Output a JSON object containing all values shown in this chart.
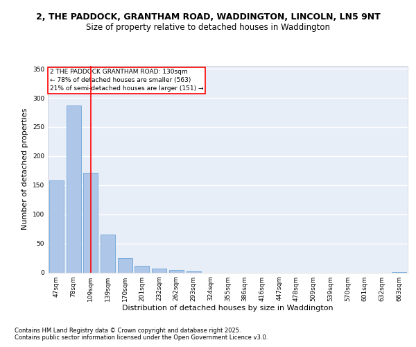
{
  "title1": "2, THE PADDOCK, GRANTHAM ROAD, WADDINGTON, LINCOLN, LN5 9NT",
  "title2": "Size of property relative to detached houses in Waddington",
  "xlabel": "Distribution of detached houses by size in Waddington",
  "ylabel": "Number of detached properties",
  "categories": [
    "47sqm",
    "78sqm",
    "109sqm",
    "139sqm",
    "170sqm",
    "201sqm",
    "232sqm",
    "262sqm",
    "293sqm",
    "324sqm",
    "355sqm",
    "386sqm",
    "416sqm",
    "447sqm",
    "478sqm",
    "509sqm",
    "539sqm",
    "570sqm",
    "601sqm",
    "632sqm",
    "663sqm"
  ],
  "values": [
    158,
    287,
    171,
    65,
    25,
    11,
    7,
    4,
    2,
    0,
    0,
    0,
    0,
    0,
    0,
    0,
    0,
    0,
    0,
    0,
    1
  ],
  "bar_color": "#aec6e8",
  "bar_edge_color": "#5b9bd5",
  "vline_x_index": 2,
  "vline_color": "red",
  "annotation_text": "2 THE PADDOCK GRANTHAM ROAD: 130sqm\n← 78% of detached houses are smaller (563)\n21% of semi-detached houses are larger (151) →",
  "annotation_box_color": "white",
  "annotation_box_edge_color": "red",
  "ylim": [
    0,
    355
  ],
  "yticks": [
    0,
    50,
    100,
    150,
    200,
    250,
    300,
    350
  ],
  "background_color": "#e8eef8",
  "grid_color": "white",
  "footer1": "Contains HM Land Registry data © Crown copyright and database right 2025.",
  "footer2": "Contains public sector information licensed under the Open Government Licence v3.0.",
  "title1_fontsize": 9,
  "title2_fontsize": 8.5,
  "xlabel_fontsize": 8,
  "ylabel_fontsize": 8,
  "tick_fontsize": 6.5,
  "annotation_fontsize": 6.5,
  "footer_fontsize": 6
}
